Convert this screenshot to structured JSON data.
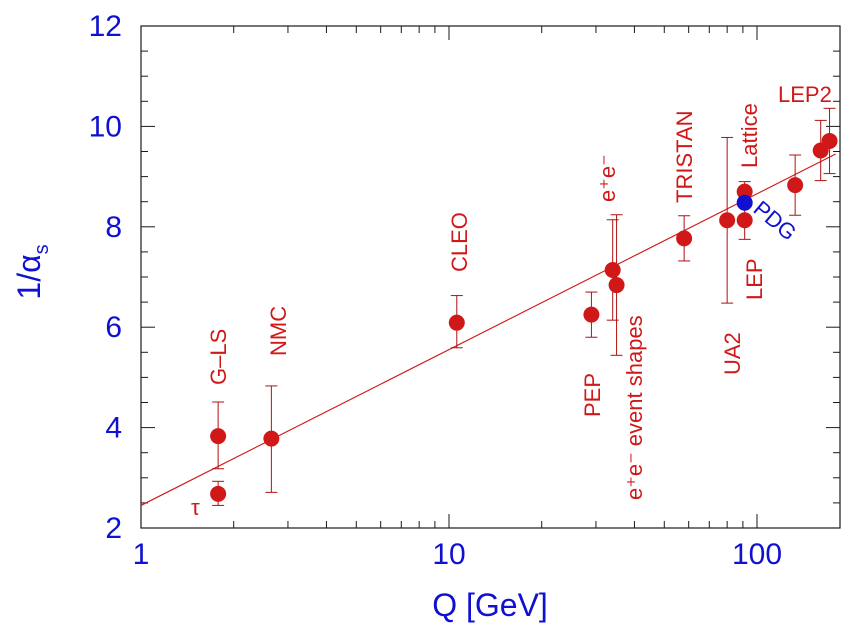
{
  "chart_data": {
    "type": "scatter",
    "xlabel": "Q  [GeV]",
    "ylabel_main": "1/α",
    "ylabel_sub": "s",
    "x_scale": "log",
    "xlim": [
      1,
      180
    ],
    "ylim": [
      2,
      12
    ],
    "x_ticks": [
      {
        "value": 1,
        "label": "1"
      },
      {
        "value": 10,
        "label": "10"
      },
      {
        "value": 100,
        "label": "100"
      }
    ],
    "y_ticks": [
      {
        "value": 2,
        "label": "2"
      },
      {
        "value": 4,
        "label": "4"
      },
      {
        "value": 6,
        "label": "6"
      },
      {
        "value": 8,
        "label": "8"
      },
      {
        "value": 10,
        "label": "10"
      },
      {
        "value": 12,
        "label": "12"
      }
    ],
    "fit_line": {
      "x": [
        1,
        180
      ],
      "y": [
        2.45,
        9.45
      ]
    },
    "points": [
      {
        "x": 1.78,
        "y": 2.68,
        "yerr_low": 0.23,
        "yerr_high": 0.25,
        "color": "#d01818"
      },
      {
        "x": 1.78,
        "y": 3.83,
        "yerr_low": 0.65,
        "yerr_high": 0.68,
        "color": "#d01818"
      },
      {
        "x": 2.65,
        "y": 3.78,
        "yerr_low": 1.07,
        "yerr_high": 1.05,
        "color": "#d01818"
      },
      {
        "x": 10.6,
        "y": 6.09,
        "yerr_low": 0.5,
        "yerr_high": 0.54,
        "color": "#d01818"
      },
      {
        "x": 29,
        "y": 6.25,
        "yerr_low": 0.45,
        "yerr_high": 0.45,
        "color": "#d01818"
      },
      {
        "x": 34,
        "y": 7.14,
        "yerr_low": 1.0,
        "yerr_high": 1.0,
        "color": "#d01818"
      },
      {
        "x": 35,
        "y": 6.84,
        "yerr_low": 1.4,
        "yerr_high": 1.4,
        "color": "#d01818"
      },
      {
        "x": 58,
        "y": 7.77,
        "yerr_low": 0.45,
        "yerr_high": 0.45,
        "color": "#d01818"
      },
      {
        "x": 80,
        "y": 8.13,
        "yerr_low": 1.65,
        "yerr_high": 1.65,
        "color": "#d01818"
      },
      {
        "x": 91.2,
        "y": 8.13,
        "yerr_low": 0.38,
        "yerr_high": 0.38,
        "color": "#d01818"
      },
      {
        "x": 91.2,
        "y": 8.7,
        "yerr_low": 0.2,
        "yerr_high": 0.2,
        "color": "#d01818"
      },
      {
        "x": 91.2,
        "y": 8.48,
        "yerr_low": 0.08,
        "yerr_high": 0.08,
        "color": "#1010d0"
      },
      {
        "x": 133,
        "y": 8.83,
        "yerr_low": 0.6,
        "yerr_high": 0.6,
        "color": "#d01818"
      },
      {
        "x": 161,
        "y": 9.52,
        "yerr_low": 0.6,
        "yerr_high": 0.6,
        "color": "#d01818"
      },
      {
        "x": 172,
        "y": 9.71,
        "yerr_low": 0.65,
        "yerr_high": 0.65,
        "color": "#d01818"
      }
    ],
    "annotations": {
      "tau": "τ",
      "gls": "G–LS",
      "nmc": "NMC",
      "cleo": "CLEO",
      "pep": "PEP",
      "ee_event_shapes": "e⁺e⁻ event shapes",
      "ee": "e⁺e⁻",
      "tristan": "TRISTAN",
      "ua2": "UA2",
      "lep": "LEP",
      "lattice": "Lattice",
      "pdg": "PDG",
      "lep2": "LEP2"
    }
  }
}
